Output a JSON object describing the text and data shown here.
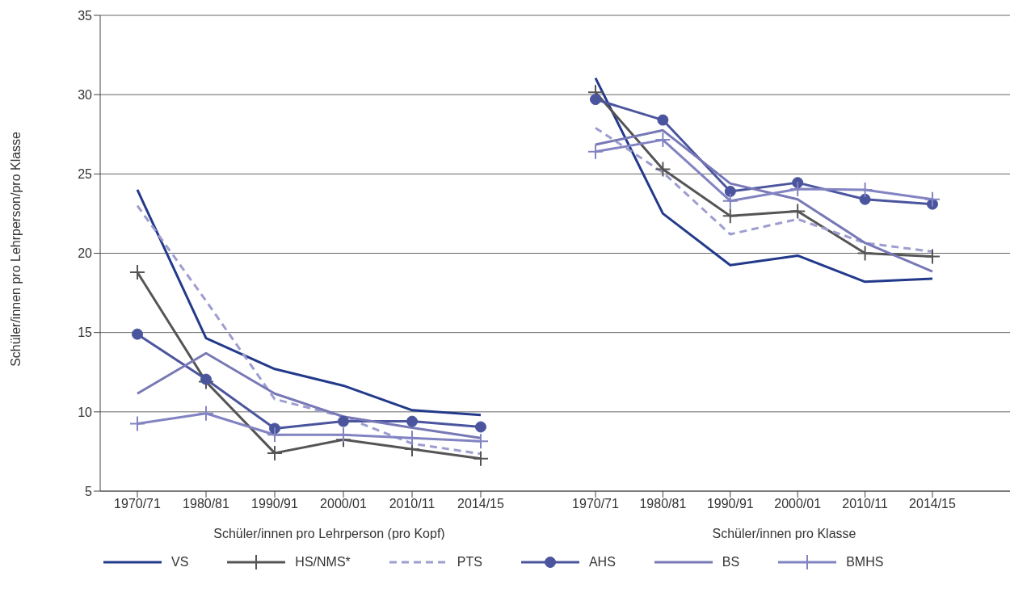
{
  "chart_data": [
    {
      "type": "line",
      "ylabel": "Schüler/innen pro Lehrperson/pro Klasse",
      "xlabel": "Schüler/innen pro Lehrperson (pro Kopf)",
      "categories": [
        "1970/71",
        "1980/81",
        "1990/91",
        "2000/01",
        "2010/11",
        "2014/15"
      ],
      "ylim": [
        5,
        35
      ],
      "yticks": [
        5,
        10,
        15,
        20,
        25,
        30,
        35
      ],
      "grid": "y",
      "legend": "bottom",
      "series": [
        {
          "name": "VS",
          "color": "#233a8b",
          "marker": "none",
          "line_style": "solid",
          "values": [
            24.0,
            14.65,
            12.7,
            11.65,
            10.1,
            9.8
          ]
        },
        {
          "name": "HS/NMS*",
          "color": "#555555",
          "marker": "cross",
          "line_style": "solid",
          "values": [
            18.8,
            11.9,
            7.4,
            8.25,
            7.65,
            7.05
          ]
        },
        {
          "name": "PTS",
          "color": "#9d9dd0",
          "marker": "none",
          "line_style": "dashed",
          "values": [
            23.0,
            17.0,
            10.8,
            9.7,
            8.0,
            7.35
          ]
        },
        {
          "name": "AHS",
          "color": "#4a559e",
          "marker": "circle",
          "line_style": "solid",
          "values": [
            14.9,
            12.05,
            8.95,
            9.4,
            9.4,
            9.05
          ]
        },
        {
          "name": "BS",
          "color": "#7878b6",
          "marker": "none",
          "line_style": "solid",
          "values": [
            11.15,
            13.7,
            11.15,
            9.7,
            9.0,
            8.35
          ]
        },
        {
          "name": "BMHS",
          "color": "#8283c2",
          "marker": "cross",
          "line_style": "solid",
          "values": [
            9.25,
            9.9,
            8.55,
            8.55,
            8.35,
            8.15
          ]
        }
      ]
    },
    {
      "type": "line",
      "xlabel": "Schüler/innen pro Klasse",
      "categories": [
        "1970/71",
        "1980/81",
        "1990/91",
        "2000/01",
        "2010/11",
        "2014/15"
      ],
      "ylim": [
        5,
        35
      ],
      "yticks": [
        5,
        10,
        15,
        20,
        25,
        30,
        35
      ],
      "grid": "y",
      "legend": "bottom",
      "tick_labels": "x",
      "series": [
        {
          "name": "VS",
          "color": "#233a8b",
          "marker": "none",
          "line_style": "solid",
          "values": [
            31.05,
            22.5,
            19.25,
            19.85,
            18.2,
            18.4
          ]
        },
        {
          "name": "HS/NMS*",
          "color": "#555555",
          "marker": "cross",
          "line_style": "solid",
          "values": [
            30.15,
            25.3,
            22.35,
            22.65,
            20.0,
            19.8
          ]
        },
        {
          "name": "PTS",
          "color": "#9d9dd0",
          "marker": "none",
          "line_style": "dashed",
          "values": [
            27.9,
            25.1,
            21.2,
            22.15,
            20.65,
            20.1
          ]
        },
        {
          "name": "AHS",
          "color": "#4a559e",
          "marker": "circle",
          "line_style": "solid",
          "values": [
            29.7,
            28.4,
            23.9,
            24.45,
            23.4,
            23.1
          ]
        },
        {
          "name": "BS",
          "color": "#7878b6",
          "marker": "none",
          "line_style": "solid",
          "values": [
            26.85,
            27.75,
            24.4,
            23.4,
            20.65,
            18.85
          ]
        },
        {
          "name": "BMHS",
          "color": "#8283c2",
          "marker": "cross",
          "line_style": "solid",
          "values": [
            26.4,
            27.15,
            23.3,
            24.05,
            24.0,
            23.4
          ]
        }
      ]
    }
  ]
}
